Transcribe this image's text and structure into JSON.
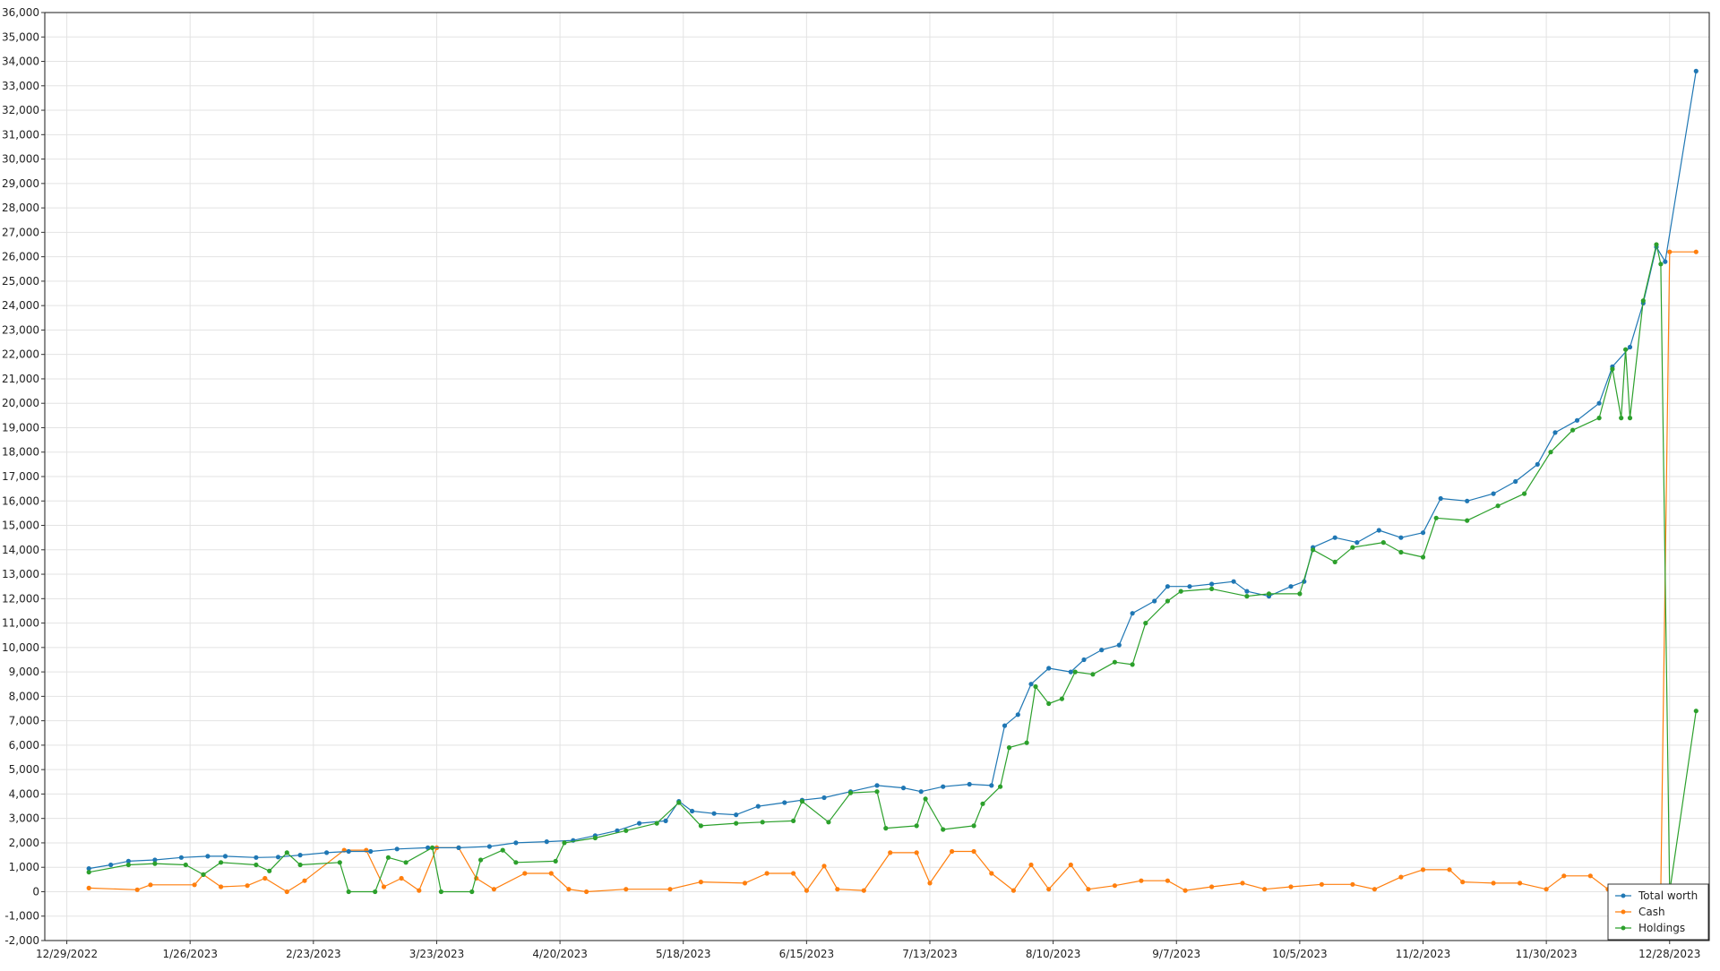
{
  "chart_data": {
    "type": "line",
    "title": "",
    "xlabel": "",
    "ylabel": "",
    "ylim": [
      -2000,
      36000
    ],
    "y_step": 1000,
    "x_range": [
      "12/24/2022",
      "1/6/2024"
    ],
    "x_ticks": [
      "12/29/2022",
      "1/26/2023",
      "2/23/2023",
      "3/23/2023",
      "4/20/2023",
      "5/18/2023",
      "6/15/2023",
      "7/13/2023",
      "8/10/2023",
      "9/7/2023",
      "10/5/2023",
      "11/2/2023",
      "11/30/2023",
      "12/28/2023"
    ],
    "grid": true,
    "legend_position": "bottom-right",
    "colors": {
      "Total worth": "#1f77b4",
      "Cash": "#ff7f0e",
      "Holdings": "#2ca02c"
    },
    "series": [
      {
        "name": "Total worth",
        "points": [
          [
            "1/3/2023",
            950
          ],
          [
            "1/8/2023",
            1100
          ],
          [
            "1/12/2023",
            1250
          ],
          [
            "1/18/2023",
            1300
          ],
          [
            "1/24/2023",
            1400
          ],
          [
            "1/30/2023",
            1450
          ],
          [
            "2/3/2023",
            1450
          ],
          [
            "2/10/2023",
            1400
          ],
          [
            "2/15/2023",
            1420
          ],
          [
            "2/20/2023",
            1500
          ],
          [
            "2/26/2023",
            1600
          ],
          [
            "3/3/2023",
            1650
          ],
          [
            "3/8/2023",
            1650
          ],
          [
            "3/14/2023",
            1750
          ],
          [
            "3/21/2023",
            1800
          ],
          [
            "3/28/2023",
            1800
          ],
          [
            "4/4/2023",
            1850
          ],
          [
            "4/10/2023",
            2000
          ],
          [
            "4/17/2023",
            2050
          ],
          [
            "4/23/2023",
            2100
          ],
          [
            "4/28/2023",
            2300
          ],
          [
            "5/3/2023",
            2500
          ],
          [
            "5/8/2023",
            2800
          ],
          [
            "5/14/2023",
            2900
          ],
          [
            "5/17/2023",
            3700
          ],
          [
            "5/20/2023",
            3300
          ],
          [
            "5/25/2023",
            3200
          ],
          [
            "5/30/2023",
            3150
          ],
          [
            "6/4/2023",
            3500
          ],
          [
            "6/10/2023",
            3650
          ],
          [
            "6/14/2023",
            3750
          ],
          [
            "6/19/2023",
            3850
          ],
          [
            "6/25/2023",
            4100
          ],
          [
            "7/1/2023",
            4350
          ],
          [
            "7/7/2023",
            4250
          ],
          [
            "7/11/2023",
            4100
          ],
          [
            "7/16/2023",
            4300
          ],
          [
            "7/22/2023",
            4400
          ],
          [
            "7/27/2023",
            4350
          ],
          [
            "7/30/2023",
            6800
          ],
          [
            "8/2/2023",
            7250
          ],
          [
            "8/5/2023",
            8500
          ],
          [
            "8/9/2023",
            9150
          ],
          [
            "8/14/2023",
            9000
          ],
          [
            "8/17/2023",
            9500
          ],
          [
            "8/21/2023",
            9900
          ],
          [
            "8/25/2023",
            10100
          ],
          [
            "8/28/2023",
            11400
          ],
          [
            "9/2/2023",
            11900
          ],
          [
            "9/5/2023",
            12500
          ],
          [
            "9/10/2023",
            12500
          ],
          [
            "9/15/2023",
            12600
          ],
          [
            "9/20/2023",
            12700
          ],
          [
            "9/23/2023",
            12300
          ],
          [
            "9/28/2023",
            12100
          ],
          [
            "10/3/2023",
            12500
          ],
          [
            "10/6/2023",
            12700
          ],
          [
            "10/8/2023",
            14100
          ],
          [
            "10/13/2023",
            14500
          ],
          [
            "10/18/2023",
            14300
          ],
          [
            "10/23/2023",
            14800
          ],
          [
            "10/28/2023",
            14500
          ],
          [
            "11/2/2023",
            14700
          ],
          [
            "11/6/2023",
            16100
          ],
          [
            "11/12/2023",
            16000
          ],
          [
            "11/18/2023",
            16300
          ],
          [
            "11/23/2023",
            16800
          ],
          [
            "11/28/2023",
            17500
          ],
          [
            "12/2/2023",
            18800
          ],
          [
            "12/7/2023",
            19300
          ],
          [
            "12/12/2023",
            20000
          ],
          [
            "12/15/2023",
            21500
          ],
          [
            "12/19/2023",
            22300
          ],
          [
            "12/22/2023",
            24100
          ],
          [
            "12/25/2023",
            26400
          ],
          [
            "12/27/2023",
            25800
          ],
          [
            "1/3/2024",
            33600
          ]
        ]
      },
      {
        "name": "Cash",
        "points": [
          [
            "1/3/2023",
            150
          ],
          [
            "1/14/2023",
            80
          ],
          [
            "1/17/2023",
            280
          ],
          [
            "1/27/2023",
            280
          ],
          [
            "1/29/2023",
            700
          ],
          [
            "2/2/2023",
            200
          ],
          [
            "2/8/2023",
            250
          ],
          [
            "2/12/2023",
            550
          ],
          [
            "2/17/2023",
            0
          ],
          [
            "2/21/2023",
            450
          ],
          [
            "3/2/2023",
            1700
          ],
          [
            "3/7/2023",
            1700
          ],
          [
            "3/11/2023",
            200
          ],
          [
            "3/15/2023",
            550
          ],
          [
            "3/19/2023",
            50
          ],
          [
            "3/23/2023",
            1800
          ],
          [
            "3/28/2023",
            1800
          ],
          [
            "4/1/2023",
            550
          ],
          [
            "4/5/2023",
            100
          ],
          [
            "4/12/2023",
            750
          ],
          [
            "4/18/2023",
            750
          ],
          [
            "4/22/2023",
            100
          ],
          [
            "4/26/2023",
            0
          ],
          [
            "5/5/2023",
            100
          ],
          [
            "5/15/2023",
            100
          ],
          [
            "5/22/2023",
            400
          ],
          [
            "6/1/2023",
            350
          ],
          [
            "6/6/2023",
            750
          ],
          [
            "6/12/2023",
            750
          ],
          [
            "6/15/2023",
            50
          ],
          [
            "6/19/2023",
            1050
          ],
          [
            "6/22/2023",
            100
          ],
          [
            "6/28/2023",
            50
          ],
          [
            "7/4/2023",
            1600
          ],
          [
            "7/10/2023",
            1600
          ],
          [
            "7/13/2023",
            350
          ],
          [
            "7/18/2023",
            1650
          ],
          [
            "7/23/2023",
            1650
          ],
          [
            "7/27/2023",
            750
          ],
          [
            "8/1/2023",
            50
          ],
          [
            "8/5/2023",
            1100
          ],
          [
            "8/9/2023",
            100
          ],
          [
            "8/14/2023",
            1100
          ],
          [
            "8/18/2023",
            100
          ],
          [
            "8/24/2023",
            250
          ],
          [
            "8/30/2023",
            450
          ],
          [
            "9/5/2023",
            450
          ],
          [
            "9/9/2023",
            50
          ],
          [
            "9/15/2023",
            200
          ],
          [
            "9/22/2023",
            350
          ],
          [
            "9/27/2023",
            100
          ],
          [
            "10/3/2023",
            200
          ],
          [
            "10/10/2023",
            300
          ],
          [
            "10/17/2023",
            300
          ],
          [
            "10/22/2023",
            100
          ],
          [
            "10/28/2023",
            600
          ],
          [
            "11/2/2023",
            900
          ],
          [
            "11/8/2023",
            900
          ],
          [
            "11/11/2023",
            400
          ],
          [
            "11/18/2023",
            350
          ],
          [
            "11/24/2023",
            350
          ],
          [
            "11/30/2023",
            100
          ],
          [
            "12/4/2023",
            650
          ],
          [
            "12/10/2023",
            650
          ],
          [
            "12/14/2023",
            100
          ],
          [
            "12/26/2023",
            50
          ],
          [
            "12/28/2023",
            26200
          ],
          [
            "1/3/2024",
            26200
          ]
        ]
      },
      {
        "name": "Holdings",
        "points": [
          [
            "1/3/2023",
            800
          ],
          [
            "1/12/2023",
            1100
          ],
          [
            "1/18/2023",
            1150
          ],
          [
            "1/25/2023",
            1100
          ],
          [
            "1/29/2023",
            700
          ],
          [
            "2/2/2023",
            1200
          ],
          [
            "2/10/2023",
            1100
          ],
          [
            "2/13/2023",
            850
          ],
          [
            "2/17/2023",
            1600
          ],
          [
            "2/20/2023",
            1100
          ],
          [
            "3/1/2023",
            1200
          ],
          [
            "3/3/2023",
            0
          ],
          [
            "3/9/2023",
            0
          ],
          [
            "3/12/2023",
            1400
          ],
          [
            "3/16/2023",
            1200
          ],
          [
            "3/22/2023",
            1800
          ],
          [
            "3/24/2023",
            0
          ],
          [
            "3/31/2023",
            0
          ],
          [
            "4/2/2023",
            1300
          ],
          [
            "4/7/2023",
            1700
          ],
          [
            "4/10/2023",
            1200
          ],
          [
            "4/19/2023",
            1250
          ],
          [
            "4/21/2023",
            2000
          ],
          [
            "4/28/2023",
            2200
          ],
          [
            "5/5/2023",
            2500
          ],
          [
            "5/12/2023",
            2800
          ],
          [
            "5/17/2023",
            3650
          ],
          [
            "5/22/2023",
            2700
          ],
          [
            "5/30/2023",
            2800
          ],
          [
            "6/5/2023",
            2850
          ],
          [
            "6/12/2023",
            2900
          ],
          [
            "6/14/2023",
            3700
          ],
          [
            "6/20/2023",
            2850
          ],
          [
            "6/25/2023",
            4050
          ],
          [
            "7/1/2023",
            4100
          ],
          [
            "7/3/2023",
            2600
          ],
          [
            "7/10/2023",
            2700
          ],
          [
            "7/12/2023",
            3800
          ],
          [
            "7/16/2023",
            2550
          ],
          [
            "7/23/2023",
            2700
          ],
          [
            "7/25/2023",
            3600
          ],
          [
            "7/29/2023",
            4300
          ],
          [
            "7/31/2023",
            5900
          ],
          [
            "8/4/2023",
            6100
          ],
          [
            "8/6/2023",
            8400
          ],
          [
            "8/9/2023",
            7700
          ],
          [
            "8/12/2023",
            7900
          ],
          [
            "8/15/2023",
            9000
          ],
          [
            "8/19/2023",
            8900
          ],
          [
            "8/24/2023",
            9400
          ],
          [
            "8/28/2023",
            9300
          ],
          [
            "8/31/2023",
            11000
          ],
          [
            "9/5/2023",
            11900
          ],
          [
            "9/8/2023",
            12300
          ],
          [
            "9/15/2023",
            12400
          ],
          [
            "9/23/2023",
            12100
          ],
          [
            "9/28/2023",
            12200
          ],
          [
            "10/5/2023",
            12200
          ],
          [
            "10/8/2023",
            14000
          ],
          [
            "10/13/2023",
            13500
          ],
          [
            "10/17/2023",
            14100
          ],
          [
            "10/24/2023",
            14300
          ],
          [
            "10/28/2023",
            13900
          ],
          [
            "11/2/2023",
            13700
          ],
          [
            "11/5/2023",
            15300
          ],
          [
            "11/12/2023",
            15200
          ],
          [
            "11/19/2023",
            15800
          ],
          [
            "11/25/2023",
            16300
          ],
          [
            "12/1/2023",
            18000
          ],
          [
            "12/6/2023",
            18900
          ],
          [
            "12/12/2023",
            19400
          ],
          [
            "12/15/2023",
            21400
          ],
          [
            "12/17/2023",
            19400
          ],
          [
            "12/18/2023",
            22200
          ],
          [
            "12/19/2023",
            19400
          ],
          [
            "12/22/2023",
            24200
          ],
          [
            "12/25/2023",
            26500
          ],
          [
            "12/26/2023",
            25700
          ],
          [
            "12/28/2023",
            0
          ],
          [
            "1/3/2024",
            7400
          ]
        ]
      }
    ]
  }
}
